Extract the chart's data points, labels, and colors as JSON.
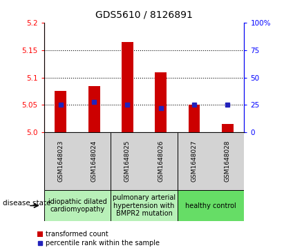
{
  "title": "GDS5610 / 8126891",
  "samples": [
    "GSM1648023",
    "GSM1648024",
    "GSM1648025",
    "GSM1648026",
    "GSM1648027",
    "GSM1648028"
  ],
  "bar_values": [
    5.075,
    5.085,
    5.165,
    5.11,
    5.05,
    5.015
  ],
  "dot_percentiles": [
    25,
    28,
    25,
    22,
    25,
    25
  ],
  "ylim_left": [
    5.0,
    5.2
  ],
  "ylim_right": [
    0,
    100
  ],
  "yticks_left": [
    5.0,
    5.05,
    5.1,
    5.15,
    5.2
  ],
  "yticks_right": [
    0,
    25,
    50,
    75,
    100
  ],
  "bar_color": "#cc0000",
  "dot_color": "#2222bb",
  "bar_base": 5.0,
  "legend_bar_label": "transformed count",
  "legend_dot_label": "percentile rank within the sample",
  "disease_state_label": "disease state",
  "title_fontsize": 10,
  "tick_fontsize": 7.5,
  "sample_fontsize": 6.5,
  "disease_fontsize": 7,
  "legend_fontsize": 7
}
